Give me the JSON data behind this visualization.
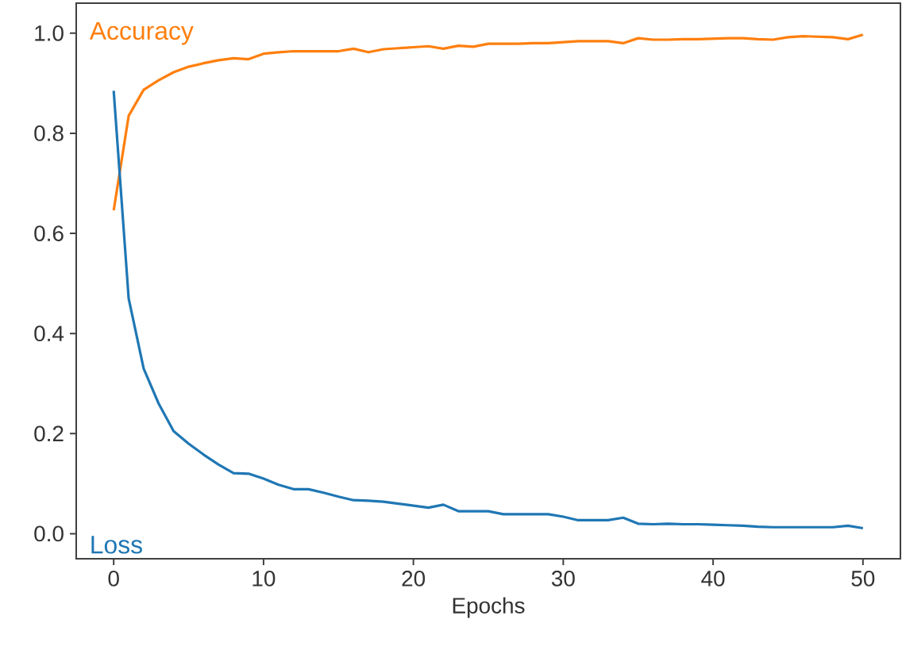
{
  "chart_data": {
    "type": "line",
    "xlabel": "Epochs",
    "x": [
      0,
      1,
      2,
      3,
      4,
      5,
      6,
      7,
      8,
      9,
      10,
      11,
      12,
      13,
      14,
      15,
      16,
      17,
      18,
      19,
      20,
      21,
      22,
      23,
      24,
      25,
      26,
      27,
      28,
      29,
      30,
      31,
      32,
      33,
      34,
      35,
      36,
      37,
      38,
      39,
      40,
      41,
      42,
      43,
      44,
      45,
      46,
      47,
      48,
      49,
      50
    ],
    "series": [
      {
        "name": "Accuracy",
        "color": "#ff7f0e",
        "values": [
          0.646,
          0.835,
          0.887,
          0.906,
          0.922,
          0.933,
          0.94,
          0.946,
          0.95,
          0.948,
          0.959,
          0.962,
          0.964,
          0.964,
          0.964,
          0.964,
          0.969,
          0.962,
          0.968,
          0.97,
          0.972,
          0.974,
          0.969,
          0.975,
          0.973,
          0.979,
          0.979,
          0.979,
          0.98,
          0.98,
          0.982,
          0.984,
          0.984,
          0.984,
          0.98,
          0.99,
          0.987,
          0.987,
          0.988,
          0.988,
          0.989,
          0.99,
          0.99,
          0.988,
          0.987,
          0.992,
          0.994,
          0.993,
          0.992,
          0.988,
          0.997
        ]
      },
      {
        "name": "Loss",
        "color": "#1f77b4",
        "values": [
          0.885,
          0.47,
          0.33,
          0.26,
          0.205,
          0.18,
          0.158,
          0.138,
          0.121,
          0.12,
          0.11,
          0.098,
          0.089,
          0.089,
          0.082,
          0.074,
          0.067,
          0.066,
          0.064,
          0.06,
          0.056,
          0.052,
          0.058,
          0.045,
          0.045,
          0.045,
          0.039,
          0.039,
          0.039,
          0.039,
          0.034,
          0.027,
          0.027,
          0.027,
          0.032,
          0.02,
          0.019,
          0.02,
          0.019,
          0.019,
          0.018,
          0.017,
          0.016,
          0.014,
          0.013,
          0.013,
          0.013,
          0.013,
          0.013,
          0.016,
          0.011
        ]
      }
    ],
    "xlim": [
      -2.5,
      52.5
    ],
    "ylim": [
      -0.05,
      1.06
    ],
    "xticks": [
      0,
      10,
      20,
      30,
      40,
      50
    ],
    "yticks": [
      {
        "value": 0,
        "label": "0.0"
      },
      {
        "value": 0.2,
        "label": "0.2"
      },
      {
        "value": 0.4,
        "label": "0.4"
      },
      {
        "value": 0.6,
        "label": "0.6"
      },
      {
        "value": 0.8,
        "label": "0.8"
      },
      {
        "value": 1.0,
        "label": "1.0"
      }
    ],
    "grid": false,
    "marker": "none",
    "line_style": "solid"
  }
}
